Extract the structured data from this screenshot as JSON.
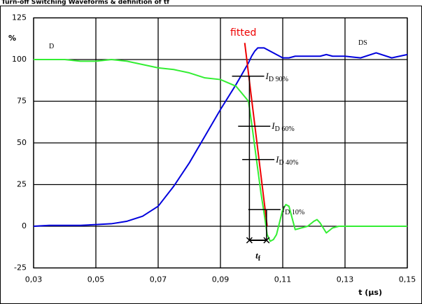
{
  "chart_data": {
    "type": "line",
    "title": "Turn-off Switching Waveforms & definition of tf",
    "y_label": "%",
    "x_label": "t (µs)",
    "x": [
      0.03,
      0.035,
      0.04,
      0.045,
      0.05,
      0.055,
      0.06,
      0.065,
      0.07,
      0.075,
      0.08,
      0.085,
      0.09,
      0.095,
      0.099,
      0.1,
      0.101,
      0.102,
      0.103,
      0.104,
      0.105,
      0.106,
      0.107,
      0.108,
      0.11,
      0.111,
      0.112,
      0.114,
      0.116,
      0.118,
      0.12,
      0.121,
      0.122,
      0.124,
      0.126,
      0.128,
      0.13,
      0.135,
      0.14,
      0.145,
      0.15
    ],
    "series": [
      {
        "name": "V",
        "subscript": "DS",
        "color": "#0000dd",
        "values": [
          0,
          0.5,
          0.5,
          0.5,
          1,
          1.5,
          3,
          6,
          12,
          24,
          38,
          54,
          70,
          85,
          98,
          102,
          105,
          107,
          107,
          107,
          106,
          105,
          104,
          103,
          101,
          101,
          101,
          102,
          102,
          102,
          102,
          102,
          102,
          103,
          102,
          102,
          102,
          101,
          104,
          101,
          103
        ]
      },
      {
        "name": "I",
        "subscript": "D",
        "color": "#33ee33",
        "values": [
          100,
          100,
          100,
          99,
          99,
          100,
          99,
          97,
          95,
          94,
          92,
          89,
          88,
          84,
          75,
          62,
          48,
          34,
          20,
          8,
          -5,
          -9,
          -8,
          -5,
          10,
          13,
          12,
          -2,
          -1,
          0,
          3,
          4,
          2,
          -4,
          -1,
          0,
          0,
          0,
          0,
          0,
          0
        ]
      }
    ],
    "fit": {
      "label": "fitted",
      "color": "#ee0000",
      "x": [
        0.0978,
        0.105
      ],
      "values": [
        110,
        0
      ]
    },
    "levels": [
      {
        "value": 90,
        "symbol": "I",
        "subscript": "D 90%"
      },
      {
        "value": 60,
        "symbol": "I",
        "subscript": "D 60%"
      },
      {
        "value": 40,
        "symbol": "I",
        "subscript": "D 40%"
      },
      {
        "value": 10,
        "symbol": "I",
        "subscript": "D 10%"
      }
    ],
    "tf": {
      "symbol": "t",
      "subscript": "f",
      "x": [
        0.0993,
        0.1048
      ]
    },
    "xlim": [
      0.03,
      0.15
    ],
    "xticks": [
      {
        "value": 0.03,
        "label": "0,03"
      },
      {
        "value": 0.05,
        "label": "0,05"
      },
      {
        "value": 0.07,
        "label": "0,07"
      },
      {
        "value": 0.09,
        "label": "0,09"
      },
      {
        "value": 0.11,
        "label": "0,11"
      },
      {
        "value": 0.13,
        "label": "0,13"
      },
      {
        "value": 0.15,
        "label": "0,15"
      }
    ],
    "ylim": [
      -25,
      125
    ],
    "yticks": [
      -25,
      0,
      25,
      50,
      75,
      100,
      125
    ],
    "grid": true
  }
}
